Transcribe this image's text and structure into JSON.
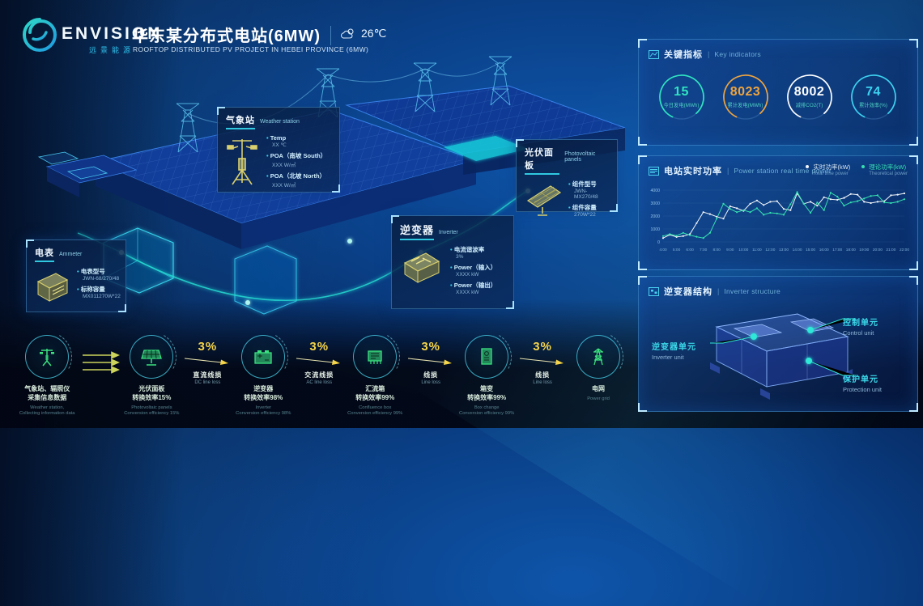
{
  "header": {
    "brand": {
      "name": "ENVISION",
      "cn": "远景能源"
    },
    "title": "华东某分布式电站(6MW)",
    "subtitle": "ROOFTOP DISTRIBUTED PV PROJECT IN HEBEI PROVINCE (6MW)",
    "temperature": "26℃"
  },
  "callouts": {
    "weather": {
      "title": "气象站",
      "title_en": "Weather station",
      "items": [
        {
          "label": "Temp",
          "value": "XX ℃"
        },
        {
          "label": "POA（南坡 South）",
          "value": "XXX W/㎡"
        },
        {
          "label": "POA（北坡 North）",
          "value": "XXX W/㎡"
        }
      ]
    },
    "pv": {
      "title": "光伏面板",
      "title_en": "Photovoltaic panels",
      "items": [
        {
          "label": "组件型号",
          "value": "JWN-MX270/48"
        },
        {
          "label": "组件容量",
          "value": "270W*22"
        }
      ]
    },
    "inverter": {
      "title": "逆变器",
      "title_en": "Inverter",
      "items": [
        {
          "label": "电流谐波率",
          "value": "3%"
        },
        {
          "label": "Power（输入）",
          "value": "XXXX kW"
        },
        {
          "label": "Power（输出）",
          "value": "XXXX kW"
        }
      ]
    },
    "ammeter": {
      "title": "电表",
      "title_en": "Ammeter",
      "items": [
        {
          "label": "电表型号",
          "value": "JWN-68/270/48"
        },
        {
          "label": "标称容量",
          "value": "MX011270W*22"
        }
      ]
    }
  },
  "panels": {
    "key_indicators": {
      "title": "关键指标",
      "title_en": "Key indicators",
      "gauges": [
        {
          "value": "15",
          "label": "今日发电(MWh)",
          "color": "#2fe5c0"
        },
        {
          "value": "8023",
          "label": "累计发电(MWh)",
          "color": "#f0a43c"
        },
        {
          "value": "8002",
          "label": "减排CO2(T)",
          "color": "#ffffff"
        },
        {
          "value": "74",
          "label": "累计效率(%)",
          "color": "#3cd2f0"
        }
      ]
    },
    "power": {
      "title": "电站实时功率",
      "title_en": "Power station real time power",
      "legend": [
        {
          "label": "实时功率(kW)",
          "sub": "Real time power",
          "color": "#f2f6fa"
        },
        {
          "label": "理论功率(kW)",
          "sub": "Theoretical power",
          "color": "#35e0b0"
        }
      ]
    },
    "inverter_structure": {
      "title": "逆变器结构",
      "title_en": "Inverter structure",
      "labels": {
        "control": {
          "cn": "控制单元",
          "en": "Control unit"
        },
        "inverter": {
          "cn": "逆变器单元",
          "en": "Inverter unit"
        },
        "protection": {
          "cn": "保护单元",
          "en": "Protection unit"
        }
      }
    }
  },
  "chart_data": {
    "type": "line",
    "title": "电站实时功率 | Power station real time power",
    "x": [
      "4:00",
      "5:00",
      "6:00",
      "7:00",
      "8:00",
      "9:00",
      "10:00",
      "11:00",
      "12:00",
      "13:00",
      "14:00",
      "15:00",
      "16:00",
      "17:00",
      "18:00",
      "19:00",
      "20:00",
      "21:00",
      "22:00"
    ],
    "yticks": [
      0,
      1000,
      2000,
      3000,
      4000
    ],
    "ylim": [
      0,
      4000
    ],
    "grid": true,
    "legend_position": "top-right",
    "series": [
      {
        "name": "实时功率(kW)",
        "name_en": "Real time power",
        "color": "#f2f6fa",
        "values": [
          300,
          550,
          380,
          450,
          600,
          1450,
          2300,
          2150,
          1950,
          1800,
          2750,
          2600,
          2400,
          2950,
          3200,
          2850,
          3100,
          3150,
          2550,
          2450,
          3750,
          2950,
          3100,
          2800,
          3450,
          3300,
          3250,
          3400,
          3700,
          3650,
          3100,
          3000,
          3100,
          3150,
          3600,
          3650,
          3750
        ]
      },
      {
        "name": "理论功率(kW)",
        "name_en": "Theoretical power",
        "color": "#35e0b0",
        "values": [
          450,
          600,
          480,
          700,
          520,
          400,
          300,
          700,
          1800,
          2950,
          2550,
          2300,
          2450,
          2300,
          2600,
          2100,
          2250,
          2200,
          2100,
          2900,
          3850,
          2950,
          2250,
          3050,
          2450,
          3800,
          3500,
          2800,
          3050,
          3150,
          3350,
          3550,
          3600,
          3050,
          3000,
          3100,
          3300
        ]
      }
    ]
  },
  "flow": {
    "nodes": [
      {
        "icon": "weather-station-icon",
        "title": "气象站、辐照仪",
        "title2": "采集信息数据",
        "sub": "Weather station,",
        "sub2": "Collecting information data"
      },
      {
        "icon": "pv-panel-icon",
        "title": "光伏面板",
        "title2": "转换效率15%",
        "sub": "Photovoltaic panels",
        "sub2": "Conversion efficiency 15%"
      },
      {
        "icon": "inverter-icon",
        "title": "逆变器",
        "title2": "转换效率98%",
        "sub": "Inverter",
        "sub2": "Conversion efficiency 98%"
      },
      {
        "icon": "combiner-box-icon",
        "title": "汇流箱",
        "title2": "转换效率99%",
        "sub": "Confluence box",
        "sub2": "Conversion efficiency 99%"
      },
      {
        "icon": "box-transformer-icon",
        "title": "箱变",
        "title2": "转换效率99%",
        "sub": "Box change",
        "sub2": "Conversion efficiency 99%"
      },
      {
        "icon": "power-grid-icon",
        "title": "电网",
        "title2": "",
        "sub": "Power grid",
        "sub2": ""
      }
    ],
    "connectors": [
      {
        "type": "arrows",
        "pct": "",
        "label": "",
        "label_en": ""
      },
      {
        "type": "loss",
        "pct": "3%",
        "label": "直流线损",
        "label_en": "DC line loss"
      },
      {
        "type": "loss",
        "pct": "3%",
        "label": "交流线损",
        "label_en": "AC line loss"
      },
      {
        "type": "loss",
        "pct": "3%",
        "label": "线损",
        "label_en": "Line loss"
      },
      {
        "type": "loss",
        "pct": "3%",
        "label": "线损",
        "label_en": "Line loss"
      }
    ]
  }
}
